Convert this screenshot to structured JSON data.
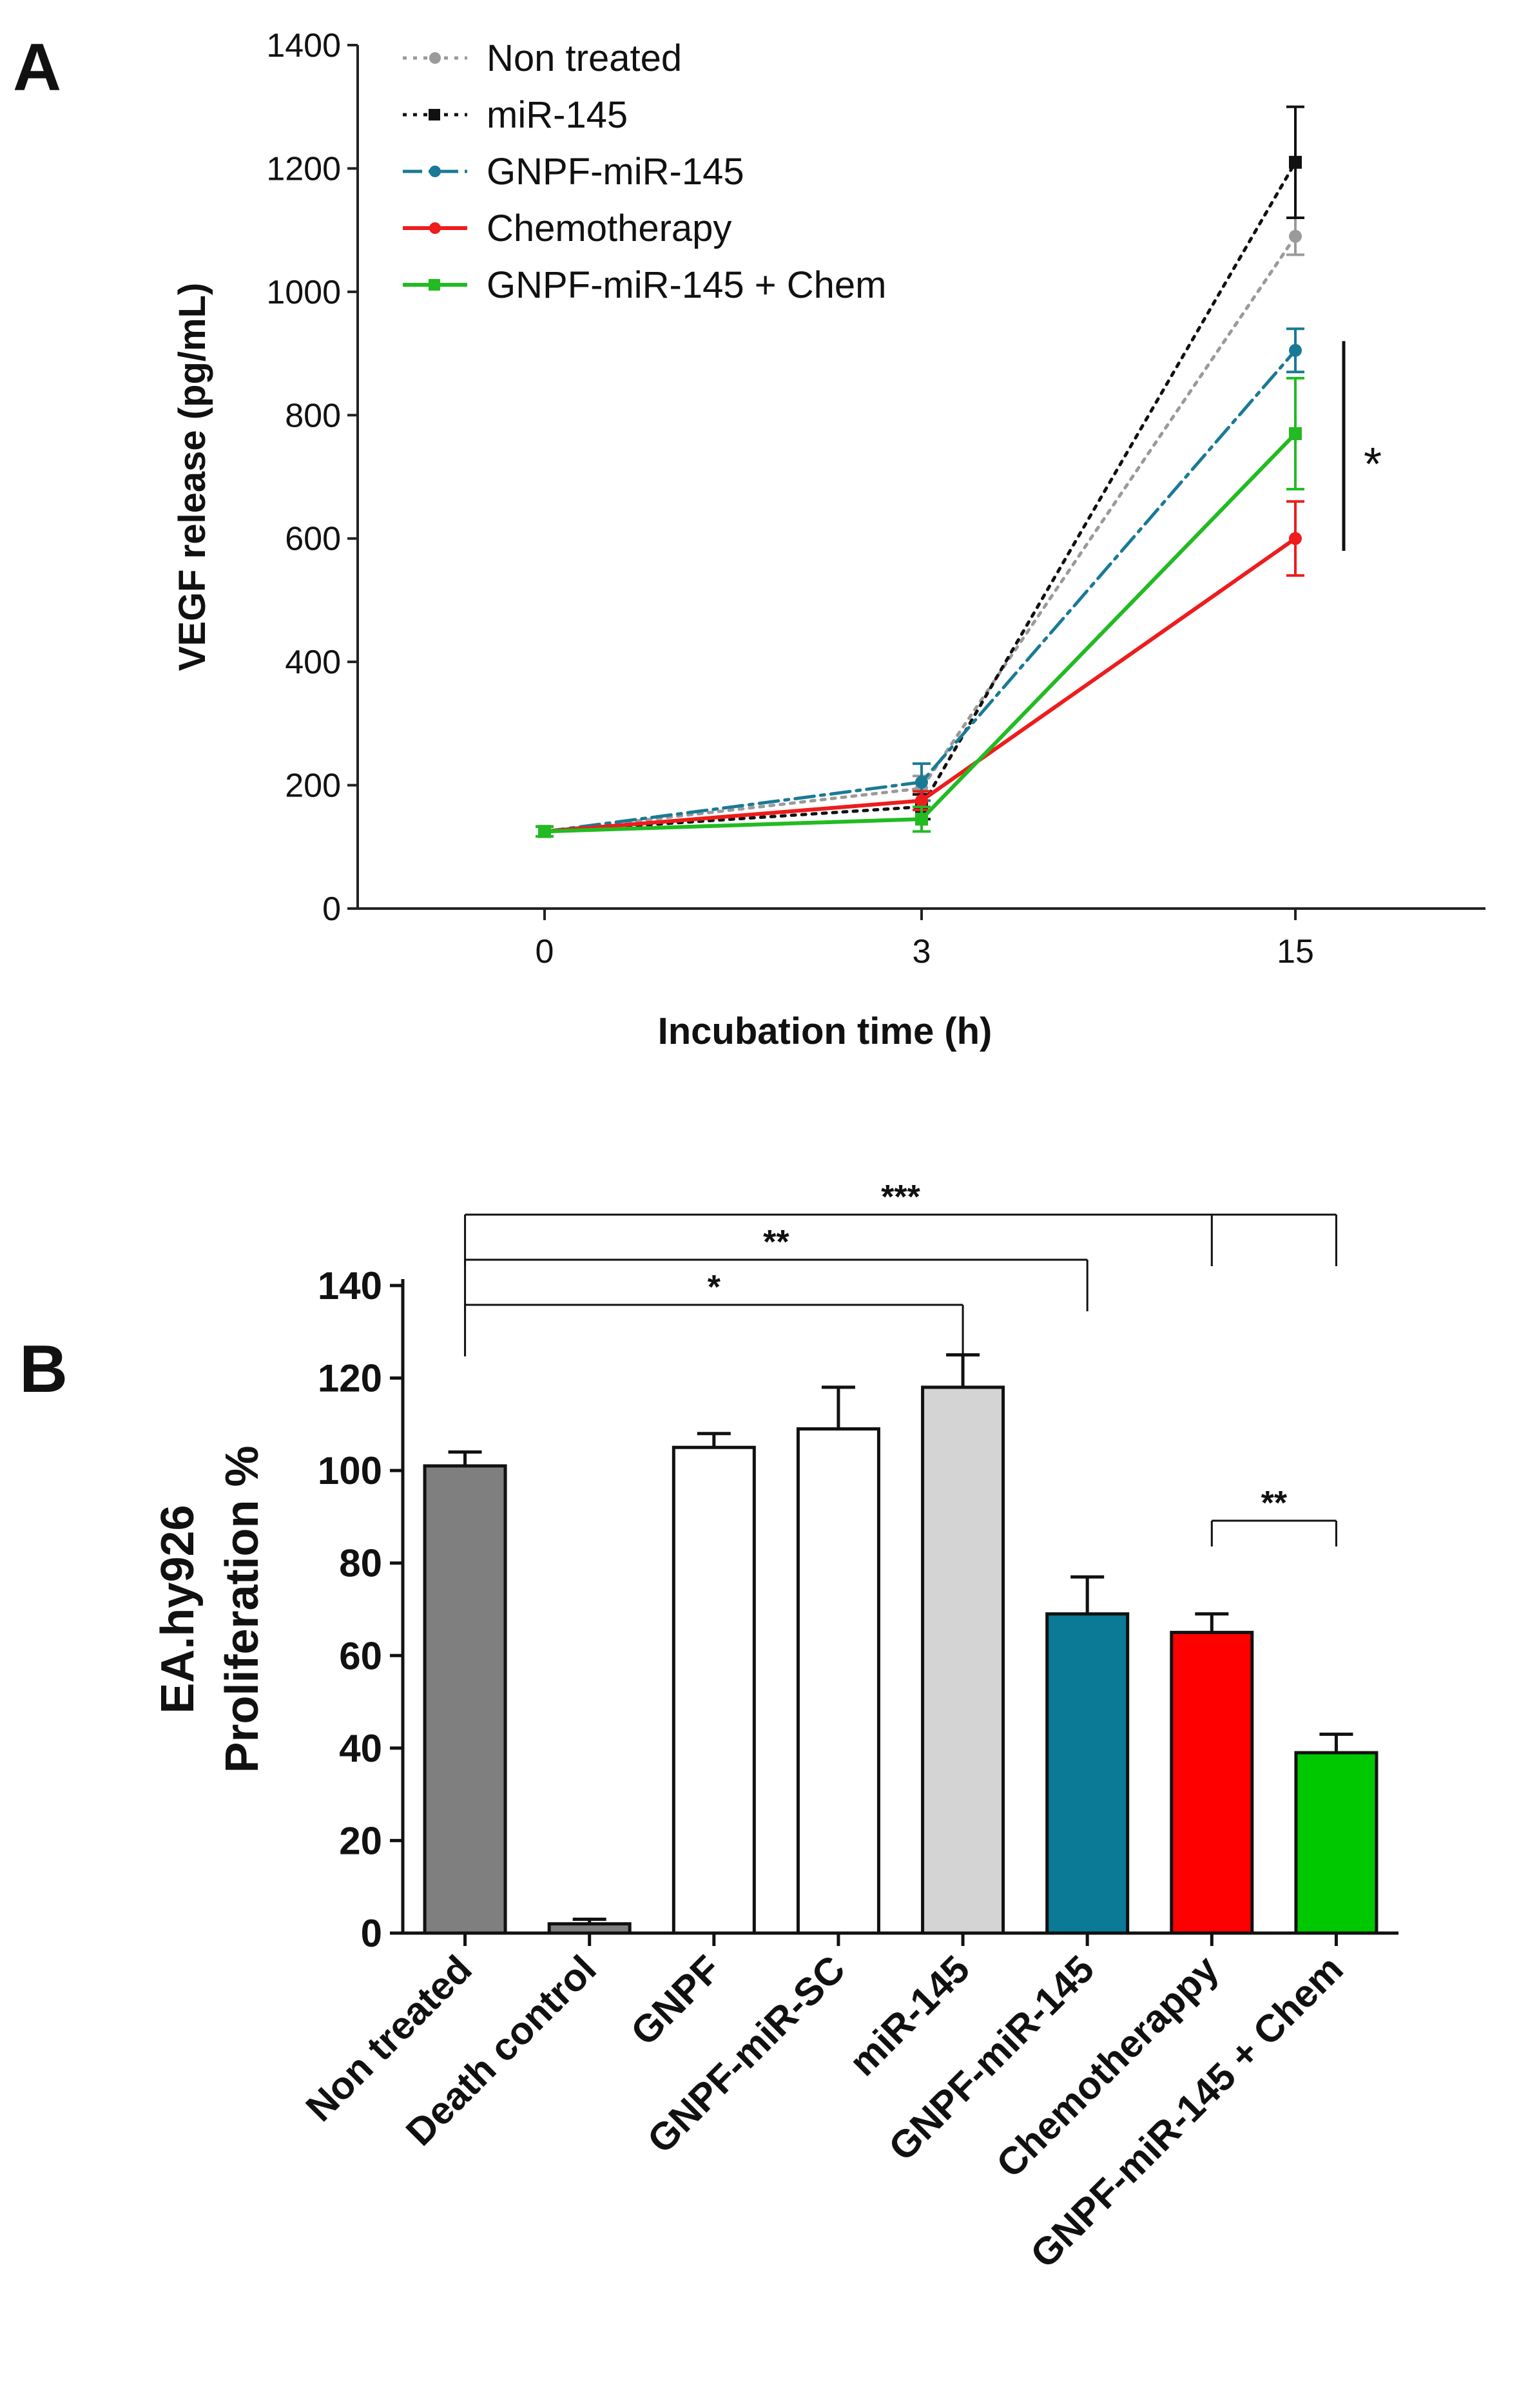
{
  "chart_data": [
    {
      "type": "line",
      "panel_label": "A",
      "x": [
        "0",
        "3",
        "15"
      ],
      "xlabel": "Incubation time (h)",
      "ylabel": "VEGF release (pg/mL)",
      "ylim": [
        0,
        1400
      ],
      "yticks": [
        0,
        200,
        400,
        600,
        800,
        1000,
        1200,
        1400
      ],
      "grid": false,
      "legend_position": "top-left",
      "series": [
        {
          "name": "Non treated",
          "color": "#9a9a9a",
          "dash": "dotted",
          "marker": "circle",
          "values": [
            125,
            195,
            1090
          ],
          "errors": [
            8,
            20,
            30
          ]
        },
        {
          "name": "miR-145",
          "color": "#111111",
          "dash": "dotted",
          "marker": "square",
          "values": [
            125,
            165,
            1210
          ],
          "errors": [
            8,
            20,
            90
          ]
        },
        {
          "name": "GNPF-miR-145",
          "color": "#1a7a96",
          "dash": "dashdot",
          "marker": "circle",
          "values": [
            125,
            205,
            905
          ],
          "errors": [
            8,
            30,
            35
          ]
        },
        {
          "name": "Chemotherapy",
          "color": "#ee1c1c",
          "dash": "solid",
          "marker": "circle",
          "values": [
            125,
            175,
            600
          ],
          "errors": [
            8,
            15,
            60
          ]
        },
        {
          "name": "GNPF-miR-145 + Chem",
          "color": "#22bb22",
          "dash": "solid",
          "marker": "square",
          "values": [
            125,
            145,
            770
          ],
          "errors": [
            8,
            20,
            90
          ]
        }
      ],
      "annotations": [
        {
          "text": "*",
          "between": [
            "GNPF-miR-145",
            "Chemotherapy"
          ],
          "at_x": "15"
        }
      ]
    },
    {
      "type": "bar",
      "panel_label": "B",
      "categories": [
        "Non treated",
        "Death control",
        "GNPF",
        "GNPF-miR-SC",
        "miR-145",
        "GNPF-miR-145",
        "Chemotherappy",
        "GNPF-miR-145 + Chem"
      ],
      "values": [
        101,
        2,
        105,
        109,
        118,
        69,
        65,
        39
      ],
      "errors": [
        3,
        1,
        3,
        9,
        7,
        8,
        4,
        4
      ],
      "colors": [
        "#7f7f7f",
        "#7f7f7f",
        "#ffffff",
        "#ffffff",
        "#d4d4d4",
        "#0a7a96",
        "#ff0000",
        "#00c800"
      ],
      "ylabel_lines": [
        "EA.hy926",
        "Proliferation %"
      ],
      "xlabel": "",
      "ylim": [
        0,
        140
      ],
      "yticks": [
        0,
        20,
        40,
        60,
        80,
        100,
        120,
        140
      ],
      "grid": false,
      "significance": [
        {
          "from": "Non treated",
          "to": "GNPF-miR-145 + Chem",
          "label": "***",
          "extra_drop": "Chemotherappy"
        },
        {
          "from": "Non treated",
          "to": "GNPF-miR-145",
          "label": "**"
        },
        {
          "from": "Non treated",
          "to": "miR-145",
          "label": "*"
        },
        {
          "from": "Chemotherappy",
          "to": "GNPF-miR-145 + Chem",
          "label": "**"
        }
      ]
    }
  ]
}
